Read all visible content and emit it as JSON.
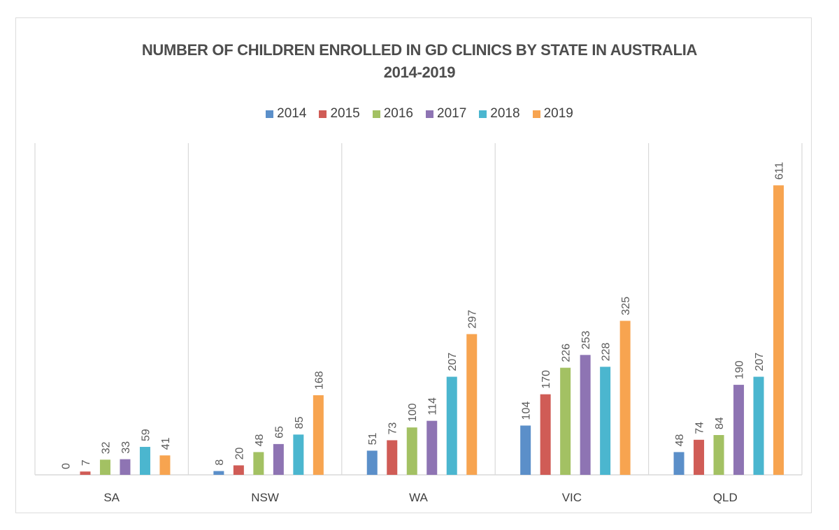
{
  "chart_data": {
    "type": "bar",
    "title": "NUMBER OF CHILDREN ENROLLED IN GD CLINICS BY STATE IN AUSTRALIA",
    "subtitle": "2014-2019",
    "xlabel": "",
    "ylabel": "",
    "ylim": [
      0,
      700
    ],
    "grid": false,
    "legend_position": "top",
    "categories": [
      "SA",
      "NSW",
      "WA",
      "VIC",
      "QLD"
    ],
    "series": [
      {
        "name": "2014",
        "color": "#5b8fc9",
        "values": [
          0,
          8,
          51,
          104,
          48
        ]
      },
      {
        "name": "2015",
        "color": "#d05c56",
        "values": [
          7,
          20,
          73,
          170,
          74
        ]
      },
      {
        "name": "2016",
        "color": "#a3c163",
        "values": [
          32,
          48,
          100,
          226,
          84
        ]
      },
      {
        "name": "2017",
        "color": "#8e74b3",
        "values": [
          33,
          65,
          114,
          253,
          190
        ]
      },
      {
        "name": "2018",
        "color": "#4bb6cf",
        "values": [
          59,
          85,
          207,
          228,
          207
        ]
      },
      {
        "name": "2019",
        "color": "#f7a450",
        "values": [
          41,
          168,
          297,
          325,
          611
        ]
      }
    ],
    "data_labels": true
  }
}
